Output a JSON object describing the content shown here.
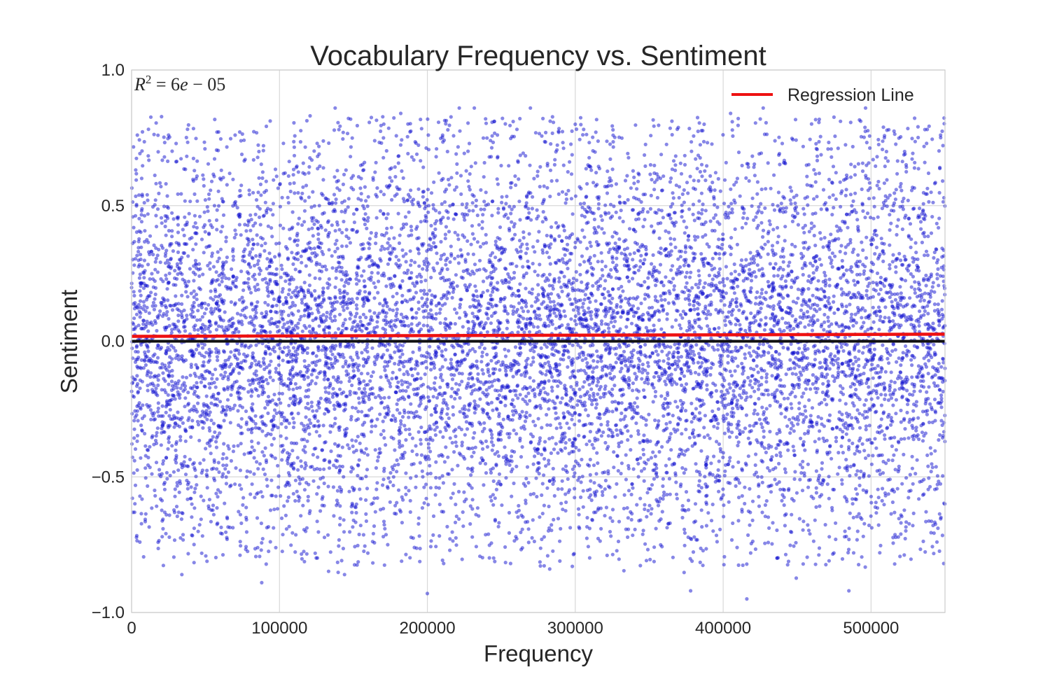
{
  "chart_data": {
    "type": "scatter",
    "title": "Vocabulary Frequency vs. Sentiment",
    "xlabel": "Frequency",
    "ylabel": "Sentiment",
    "xlim": [
      0,
      550000
    ],
    "ylim": [
      -1.0,
      1.0
    ],
    "x_ticks": [
      0,
      100000,
      200000,
      300000,
      400000,
      500000
    ],
    "x_tick_labels": [
      "0",
      "100000",
      "200000",
      "300000",
      "400000",
      "500000"
    ],
    "y_ticks": [
      1.0,
      0.5,
      0.0,
      -0.5,
      -1.0
    ],
    "y_tick_labels": [
      "1.0",
      "0.5",
      "0.0",
      "−0.5",
      "−1.0"
    ],
    "grid": true,
    "annotation": {
      "text": "R² = 6e − 05",
      "r_squared": "6e-05"
    },
    "legend": {
      "placement": "upper-right",
      "entries": [
        {
          "label": "Regression Line",
          "color": "#ee1111"
        }
      ]
    },
    "series": [
      {
        "kind": "scatter",
        "color": "#1010d0",
        "alpha": 0.5,
        "approx_point_count": 10000,
        "x_range": [
          0,
          550000
        ],
        "y_distribution": "dense band between about -0.5 and 0.5, sparse tails to -0.95 and 0.85",
        "sample_points": [
          [
            25000,
            0.76
          ],
          [
            70000,
            0.76
          ],
          [
            88000,
            -0.89
          ],
          [
            182000,
            0.84
          ],
          [
            200000,
            -0.93
          ],
          [
            258000,
            0.81
          ],
          [
            300000,
            0.8
          ],
          [
            405000,
            0.84
          ],
          [
            416000,
            -0.95
          ],
          [
            378000,
            -0.92
          ],
          [
            512000,
            0.78
          ],
          [
            547000,
            0.76
          ],
          [
            34000,
            -0.86
          ],
          [
            144000,
            -0.86
          ],
          [
            485000,
            -0.92
          ]
        ]
      },
      {
        "name": "Regression Line",
        "kind": "line",
        "color": "#ee1111",
        "x": [
          0,
          550000
        ],
        "y": [
          0.018,
          0.026
        ]
      },
      {
        "kind": "line",
        "color": "#111111",
        "x": [
          0,
          550000
        ],
        "y": [
          0.0,
          0.0
        ]
      }
    ]
  }
}
